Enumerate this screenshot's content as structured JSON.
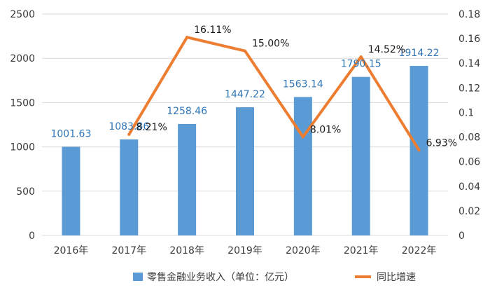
{
  "colors": {
    "bar": "#5b9bd5",
    "line": "#ed7d31",
    "grid": "#d9d9d9",
    "bar_label": "#2e75b6"
  },
  "legend": {
    "bar_label": "零售金融业务收入（单位：亿元）",
    "line_label": "同比增速"
  },
  "chart_data": {
    "type": "bar",
    "categories": [
      "2016年",
      "2017年",
      "2018年",
      "2019年",
      "2020年",
      "2021年",
      "2022年"
    ],
    "series": [
      {
        "name": "零售金融业务收入（单位：亿元）",
        "type": "bar",
        "axis": "left",
        "values": [
          1001.63,
          1083.86,
          1258.46,
          1447.22,
          1563.14,
          1790.15,
          1914.22
        ],
        "labels": [
          "1001.63",
          "1083.86",
          "1258.46",
          "1447.22",
          "1563.14",
          "1790.15",
          "1914.22"
        ]
      },
      {
        "name": "同比增速",
        "type": "line",
        "axis": "right",
        "values": [
          null,
          0.0821,
          0.1611,
          0.15,
          0.0801,
          0.1452,
          0.0693
        ],
        "labels": [
          null,
          "8.21%",
          "16.11%",
          "15.00%",
          "8.01%",
          "14.52%",
          "6.93%"
        ]
      }
    ],
    "y_left": {
      "min": 0,
      "max": 2500,
      "ticks": [
        "0",
        "500",
        "1000",
        "1500",
        "2000",
        "2500"
      ]
    },
    "y_right": {
      "min": 0,
      "max": 0.18,
      "ticks": [
        "0",
        "0.02",
        "0.04",
        "0.06",
        "0.08",
        "0.1",
        "0.12",
        "0.14",
        "0.16",
        "0.18"
      ]
    },
    "grid": true,
    "legend_position": "bottom"
  }
}
